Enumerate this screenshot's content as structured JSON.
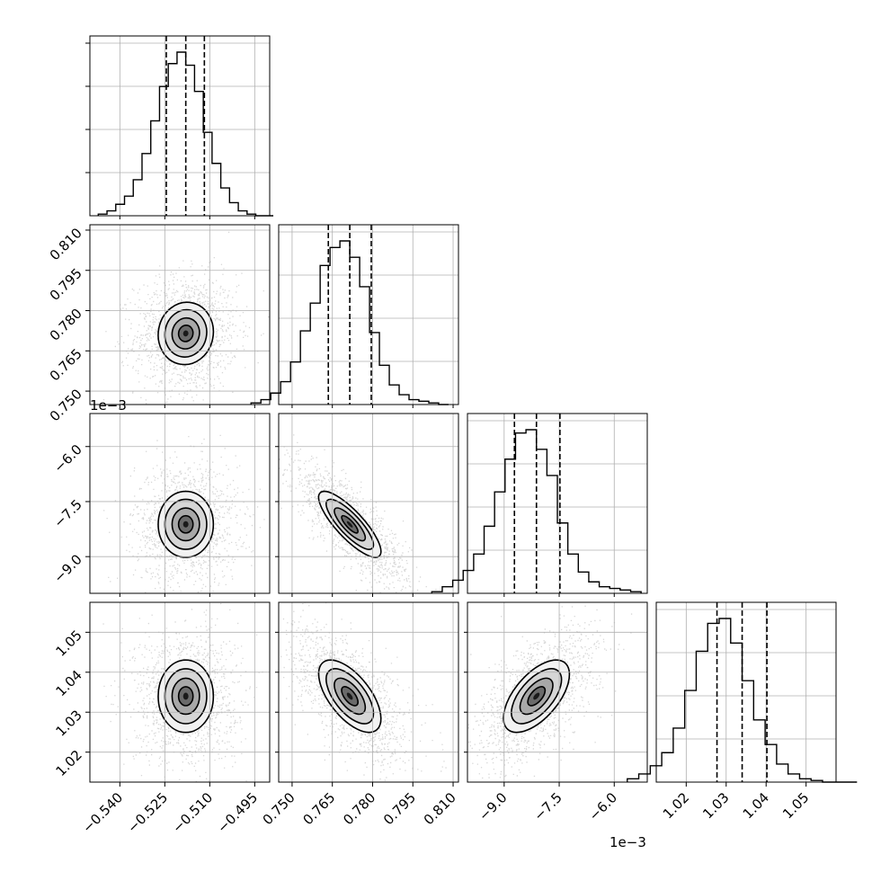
{
  "chart_data": {
    "type": "corner",
    "grid": true,
    "variables": [
      {
        "range": [
          -0.55,
          -0.49
        ],
        "ticks": [
          -0.54,
          -0.525,
          -0.51,
          -0.495
        ],
        "tick_labels": [
          "−0.540",
          "−0.525",
          "−0.510",
          "−0.495"
        ],
        "offset": "",
        "quantiles": [
          -0.5245,
          -0.518,
          -0.5118
        ]
      },
      {
        "range": [
          0.745,
          0.812
        ],
        "ticks": [
          0.75,
          0.765,
          0.78,
          0.795,
          0.81
        ],
        "tick_labels": [
          "0.750",
          "0.765",
          "0.780",
          "0.795",
          "0.810"
        ],
        "offset": "",
        "quantiles": [
          0.7635,
          0.7715,
          0.7795
        ]
      },
      {
        "range": [
          -10.0,
          -5.1
        ],
        "ticks": [
          -9.0,
          -7.5,
          -6.0
        ],
        "tick_labels": [
          "−9.0",
          "−7.5",
          "−6.0"
        ],
        "offset": "1e−3",
        "quantiles": [
          -8.72,
          -8.12,
          -7.48
        ]
      },
      {
        "range": [
          1.0125,
          1.0575
        ],
        "ticks": [
          1.02,
          1.03,
          1.04,
          1.05
        ],
        "tick_labels": [
          "1.02",
          "1.03",
          "1.04",
          "1.05"
        ],
        "offset": "",
        "quantiles": [
          1.0277,
          1.034,
          1.0402
        ]
      }
    ],
    "correlations": [
      {
        "pair": [
          0,
          1
        ],
        "r": 0.05
      },
      {
        "pair": [
          0,
          2
        ],
        "r": 0.0
      },
      {
        "pair": [
          1,
          2
        ],
        "r": -0.82
      },
      {
        "pair": [
          0,
          3
        ],
        "r": 0.0
      },
      {
        "pair": [
          1,
          3
        ],
        "r": -0.62
      },
      {
        "pair": [
          2,
          3
        ],
        "r": 0.6
      }
    ],
    "histograms": [
      [
        0.01,
        0.03,
        0.07,
        0.12,
        0.22,
        0.38,
        0.58,
        0.79,
        0.93,
        1.0,
        0.92,
        0.76,
        0.51,
        0.32,
        0.17,
        0.08,
        0.03,
        0.01,
        0.0,
        0.0
      ],
      [
        0.01,
        0.03,
        0.07,
        0.14,
        0.26,
        0.45,
        0.62,
        0.85,
        0.96,
        1.0,
        0.9,
        0.72,
        0.44,
        0.24,
        0.12,
        0.06,
        0.03,
        0.02,
        0.01,
        0.0
      ],
      [
        0.01,
        0.04,
        0.08,
        0.14,
        0.24,
        0.41,
        0.62,
        0.82,
        0.98,
        1.0,
        0.88,
        0.72,
        0.43,
        0.24,
        0.13,
        0.07,
        0.04,
        0.03,
        0.02,
        0.01
      ],
      [
        0.02,
        0.05,
        0.1,
        0.18,
        0.33,
        0.56,
        0.8,
        0.97,
        1.0,
        0.85,
        0.62,
        0.38,
        0.23,
        0.11,
        0.05,
        0.02,
        0.01,
        0.0,
        0.0,
        0.0
      ]
    ]
  },
  "colors": {
    "axes": "#000000",
    "grid": "#b0b0b0",
    "scatter": "#8c8c8c"
  }
}
